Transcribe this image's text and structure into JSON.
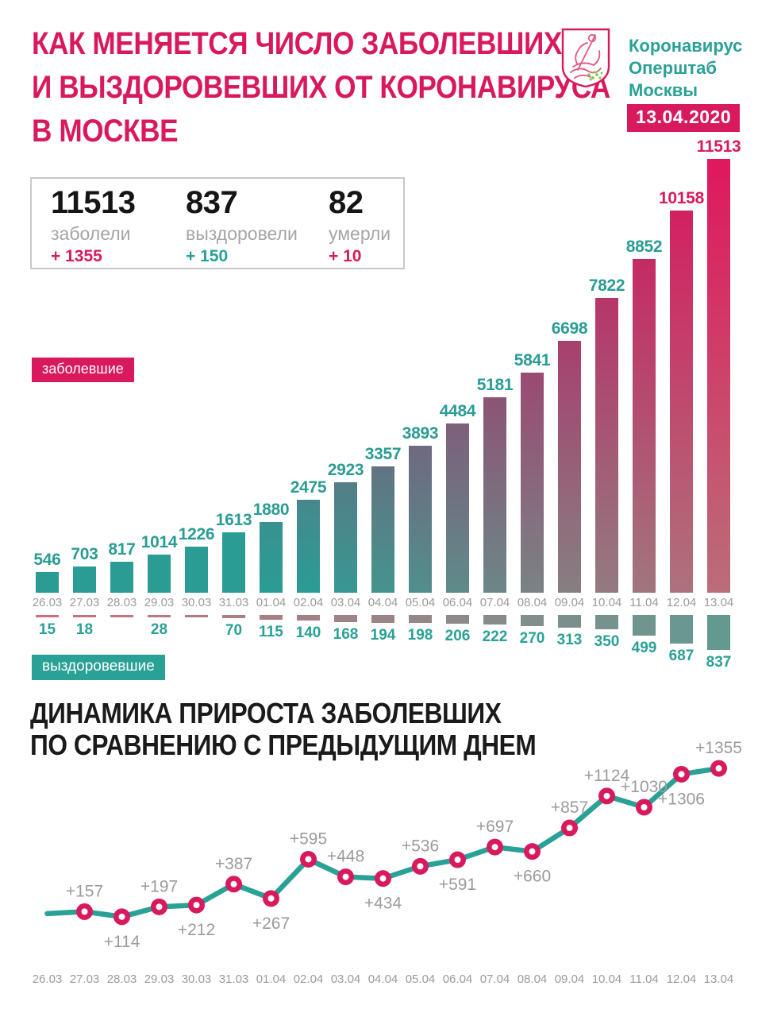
{
  "header": {
    "title_lines": [
      "КАК МЕНЯЕТСЯ ЧИСЛО ЗАБОЛЕВШИХ",
      "И ВЫЗДОРОВЕВШИХ ОТ КОРОНАВИРУСА",
      "В МОСКВЕ"
    ],
    "logo_lines": [
      "Коронавирус",
      "Оперштаб",
      "Москвы"
    ],
    "date_badge": "13.04.2020"
  },
  "stats": [
    {
      "value": "11513",
      "label": "заболели",
      "delta": "+ 1355",
      "delta_color": "#D9195D"
    },
    {
      "value": "837",
      "label": "выздоровели",
      "delta": "+ 150",
      "delta_color": "#2AA196"
    },
    {
      "value": "82",
      "label": "умерли",
      "delta": "+ 10",
      "delta_color": "#D9195D"
    }
  ],
  "badges": {
    "infected": "заболевшие",
    "recovered": "выздоровевшие"
  },
  "section2": {
    "title_lines": [
      "ДИНАМИКА ПРИРОСТА ЗАБОЛЕВШИХ",
      "ПО СРАВНЕНИЮ С ПРЕДЫДУЩИМ ДНЕМ"
    ]
  },
  "colors": {
    "pink": "#D9195D",
    "pink_bright": "#E0175D",
    "teal": "#2AA196",
    "teal_bar": "#2A9C94",
    "gray_text": "#9B9B9B",
    "rose_bottom": "#BA6E78",
    "black": "#1A1A1A"
  },
  "chart_data": [
    {
      "type": "bar",
      "title": "Число заболевших и выздоровевших от коронавируса в Москве по дням",
      "categories": [
        "26.03",
        "27.03",
        "28.03",
        "29.03",
        "30.03",
        "31.03",
        "01.04",
        "02.04",
        "03.04",
        "04.04",
        "05.04",
        "06.04",
        "07.04",
        "08.04",
        "09.04",
        "10.04",
        "11.04",
        "12.04",
        "13.04"
      ],
      "series": [
        {
          "name": "заболевшие",
          "direction": "up",
          "values": [
            546,
            703,
            817,
            1014,
            1226,
            1613,
            1880,
            2475,
            2923,
            3357,
            3893,
            4484,
            5181,
            5841,
            6698,
            7822,
            8852,
            10158,
            11513
          ]
        },
        {
          "name": "выздоровевшие",
          "direction": "down",
          "values": [
            15,
            18,
            null,
            28,
            null,
            70,
            115,
            140,
            168,
            194,
            198,
            206,
            222,
            270,
            313,
            350,
            499,
            687,
            837
          ]
        }
      ],
      "ylim": [
        0,
        11513
      ],
      "grid": false,
      "legend_position": "left-badges"
    },
    {
      "type": "line",
      "title": "Динамика прироста заболевших по сравнению с предыдущим днем",
      "x": [
        "26.03",
        "27.03",
        "28.03",
        "29.03",
        "30.03",
        "31.03",
        "01.04",
        "02.04",
        "03.04",
        "04.04",
        "05.04",
        "06.04",
        "07.04",
        "08.04",
        "09.04",
        "10.04",
        "11.04",
        "12.04",
        "13.04"
      ],
      "values": [
        null,
        157,
        114,
        197,
        212,
        387,
        267,
        595,
        448,
        434,
        536,
        591,
        697,
        660,
        857,
        1124,
        1030,
        1306,
        1355
      ],
      "labels": [
        "",
        "+157",
        "+114",
        "+197",
        "+212",
        "+387",
        "+267",
        "+595",
        "+448",
        "+434",
        "+536",
        "+591",
        "+697",
        "+660",
        "+857",
        "+1124",
        "+1030",
        "+1306",
        "+1355"
      ],
      "label_side": [
        "",
        "above",
        "below",
        "above",
        "below",
        "above",
        "below",
        "above",
        "above",
        "below",
        "above",
        "below",
        "above",
        "below",
        "above",
        "above",
        "above",
        "below",
        "above"
      ],
      "ylim": [
        0,
        1400
      ],
      "grid": false,
      "legend_position": "none"
    }
  ]
}
